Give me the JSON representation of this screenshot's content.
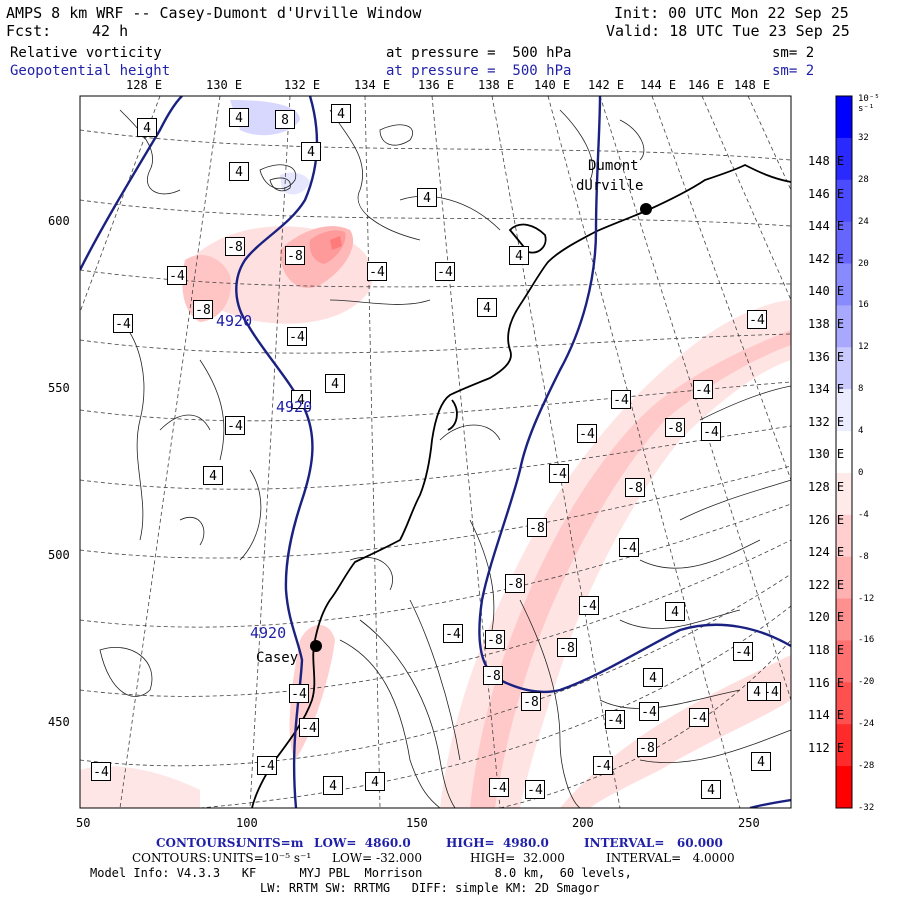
{
  "header": {
    "title": "AMPS 8 km WRF -- Casey-Dumont d'Urville Window",
    "init": "Init: 00 UTC Mon 22 Sep 25",
    "fcst_label": "Fcst:",
    "fcst_value": "42 h",
    "valid": "Valid: 18 UTC Tue 23 Sep 25",
    "field1": "Relative vorticity",
    "field2": "Geopotential height",
    "pressure1": "at pressure =  500 hPa",
    "pressure2": "at pressure =  500 hPa",
    "sm1": "sm= 2",
    "sm2": "sm= 2"
  },
  "top_lon_labels": [
    "128 E",
    "130 E",
    "132 E",
    "134 E",
    "136 E",
    "138 E",
    "140 E",
    "142 E",
    "144 E",
    "146 E",
    "148 E"
  ],
  "right_lon_labels": [
    "148 E",
    "146 E",
    "144 E",
    "142 E",
    "140 E",
    "138 E",
    "136 E",
    "134 E",
    "132 E",
    "130 E",
    "128 E",
    "126 E",
    "124 E",
    "122 E",
    "120 E",
    "118 E",
    "116 E",
    "114 E",
    "112 E"
  ],
  "y_axis": [
    "600",
    "550",
    "500",
    "450"
  ],
  "x_axis": [
    "50",
    "100",
    "150",
    "200",
    "250"
  ],
  "colorbar": {
    "unit": "10⁻⁵ s⁻¹",
    "labels": [
      "32",
      "28",
      "24",
      "20",
      "16",
      "12",
      "8",
      "4",
      "0",
      "-4",
      "-8",
      "-12",
      "-16",
      "-20",
      "-24",
      "-28",
      "-32"
    ],
    "colors": [
      "#0000ff",
      "#2a2aff",
      "#4b4bff",
      "#6666ff",
      "#8a8aff",
      "#a8a8ff",
      "#cacaff",
      "#ececff",
      "#ffffff",
      "#ffeaea",
      "#ffcfcf",
      "#ffb0b0",
      "#ff9090",
      "#ff7070",
      "#ff5050",
      "#ff2a2a",
      "#ff0000"
    ]
  },
  "stations": {
    "dumont": [
      "Dumont",
      "dUrville"
    ],
    "casey": "Casey"
  },
  "height_labels": [
    "4920",
    "4920",
    "4920"
  ],
  "vort_labels": [
    "4",
    "4",
    "8",
    "4",
    "4",
    "4",
    "4",
    "-8",
    "-4",
    "-8",
    "-8",
    "-4",
    "-4",
    "-4",
    "-4",
    "-4",
    "4",
    "4",
    "4",
    "4",
    "-4",
    "-4",
    "-4",
    "-4",
    "-8",
    "-4",
    "-4",
    "-8",
    "-8",
    "-4",
    "-8",
    "-4",
    "-8",
    "-8",
    "-8",
    "-4",
    "4",
    "-4",
    "-8",
    "-4",
    "-4",
    "-8",
    "-4",
    "-4",
    "-4",
    "-4",
    "-4",
    "4",
    "-4",
    "-4",
    "4",
    "4",
    "4",
    "4",
    "-4",
    "-4",
    "4",
    "4"
  ],
  "footer": {
    "c1_label": "CONTOURS:",
    "c1_units": "UNITS=m",
    "c1_low": "LOW=  4860.0",
    "c1_high": "HIGH=  4980.0",
    "c1_interval": "INTERVAL=   60.000",
    "c2_label": "CONTOURS:",
    "c2_units": "UNITS=10⁻⁵ s⁻¹",
    "c2_low": "LOW= -32.000",
    "c2_high": "HIGH=  32.000",
    "c2_interval": "INTERVAL=   4.0000",
    "model1": "Model Info: V4.3.3   KF      MYJ PBL  Morrison          8.0 km,  60 levels,",
    "model2": "LW: RRTM SW: RRTMG   DIFF: simple KM: 2D Smagor"
  }
}
